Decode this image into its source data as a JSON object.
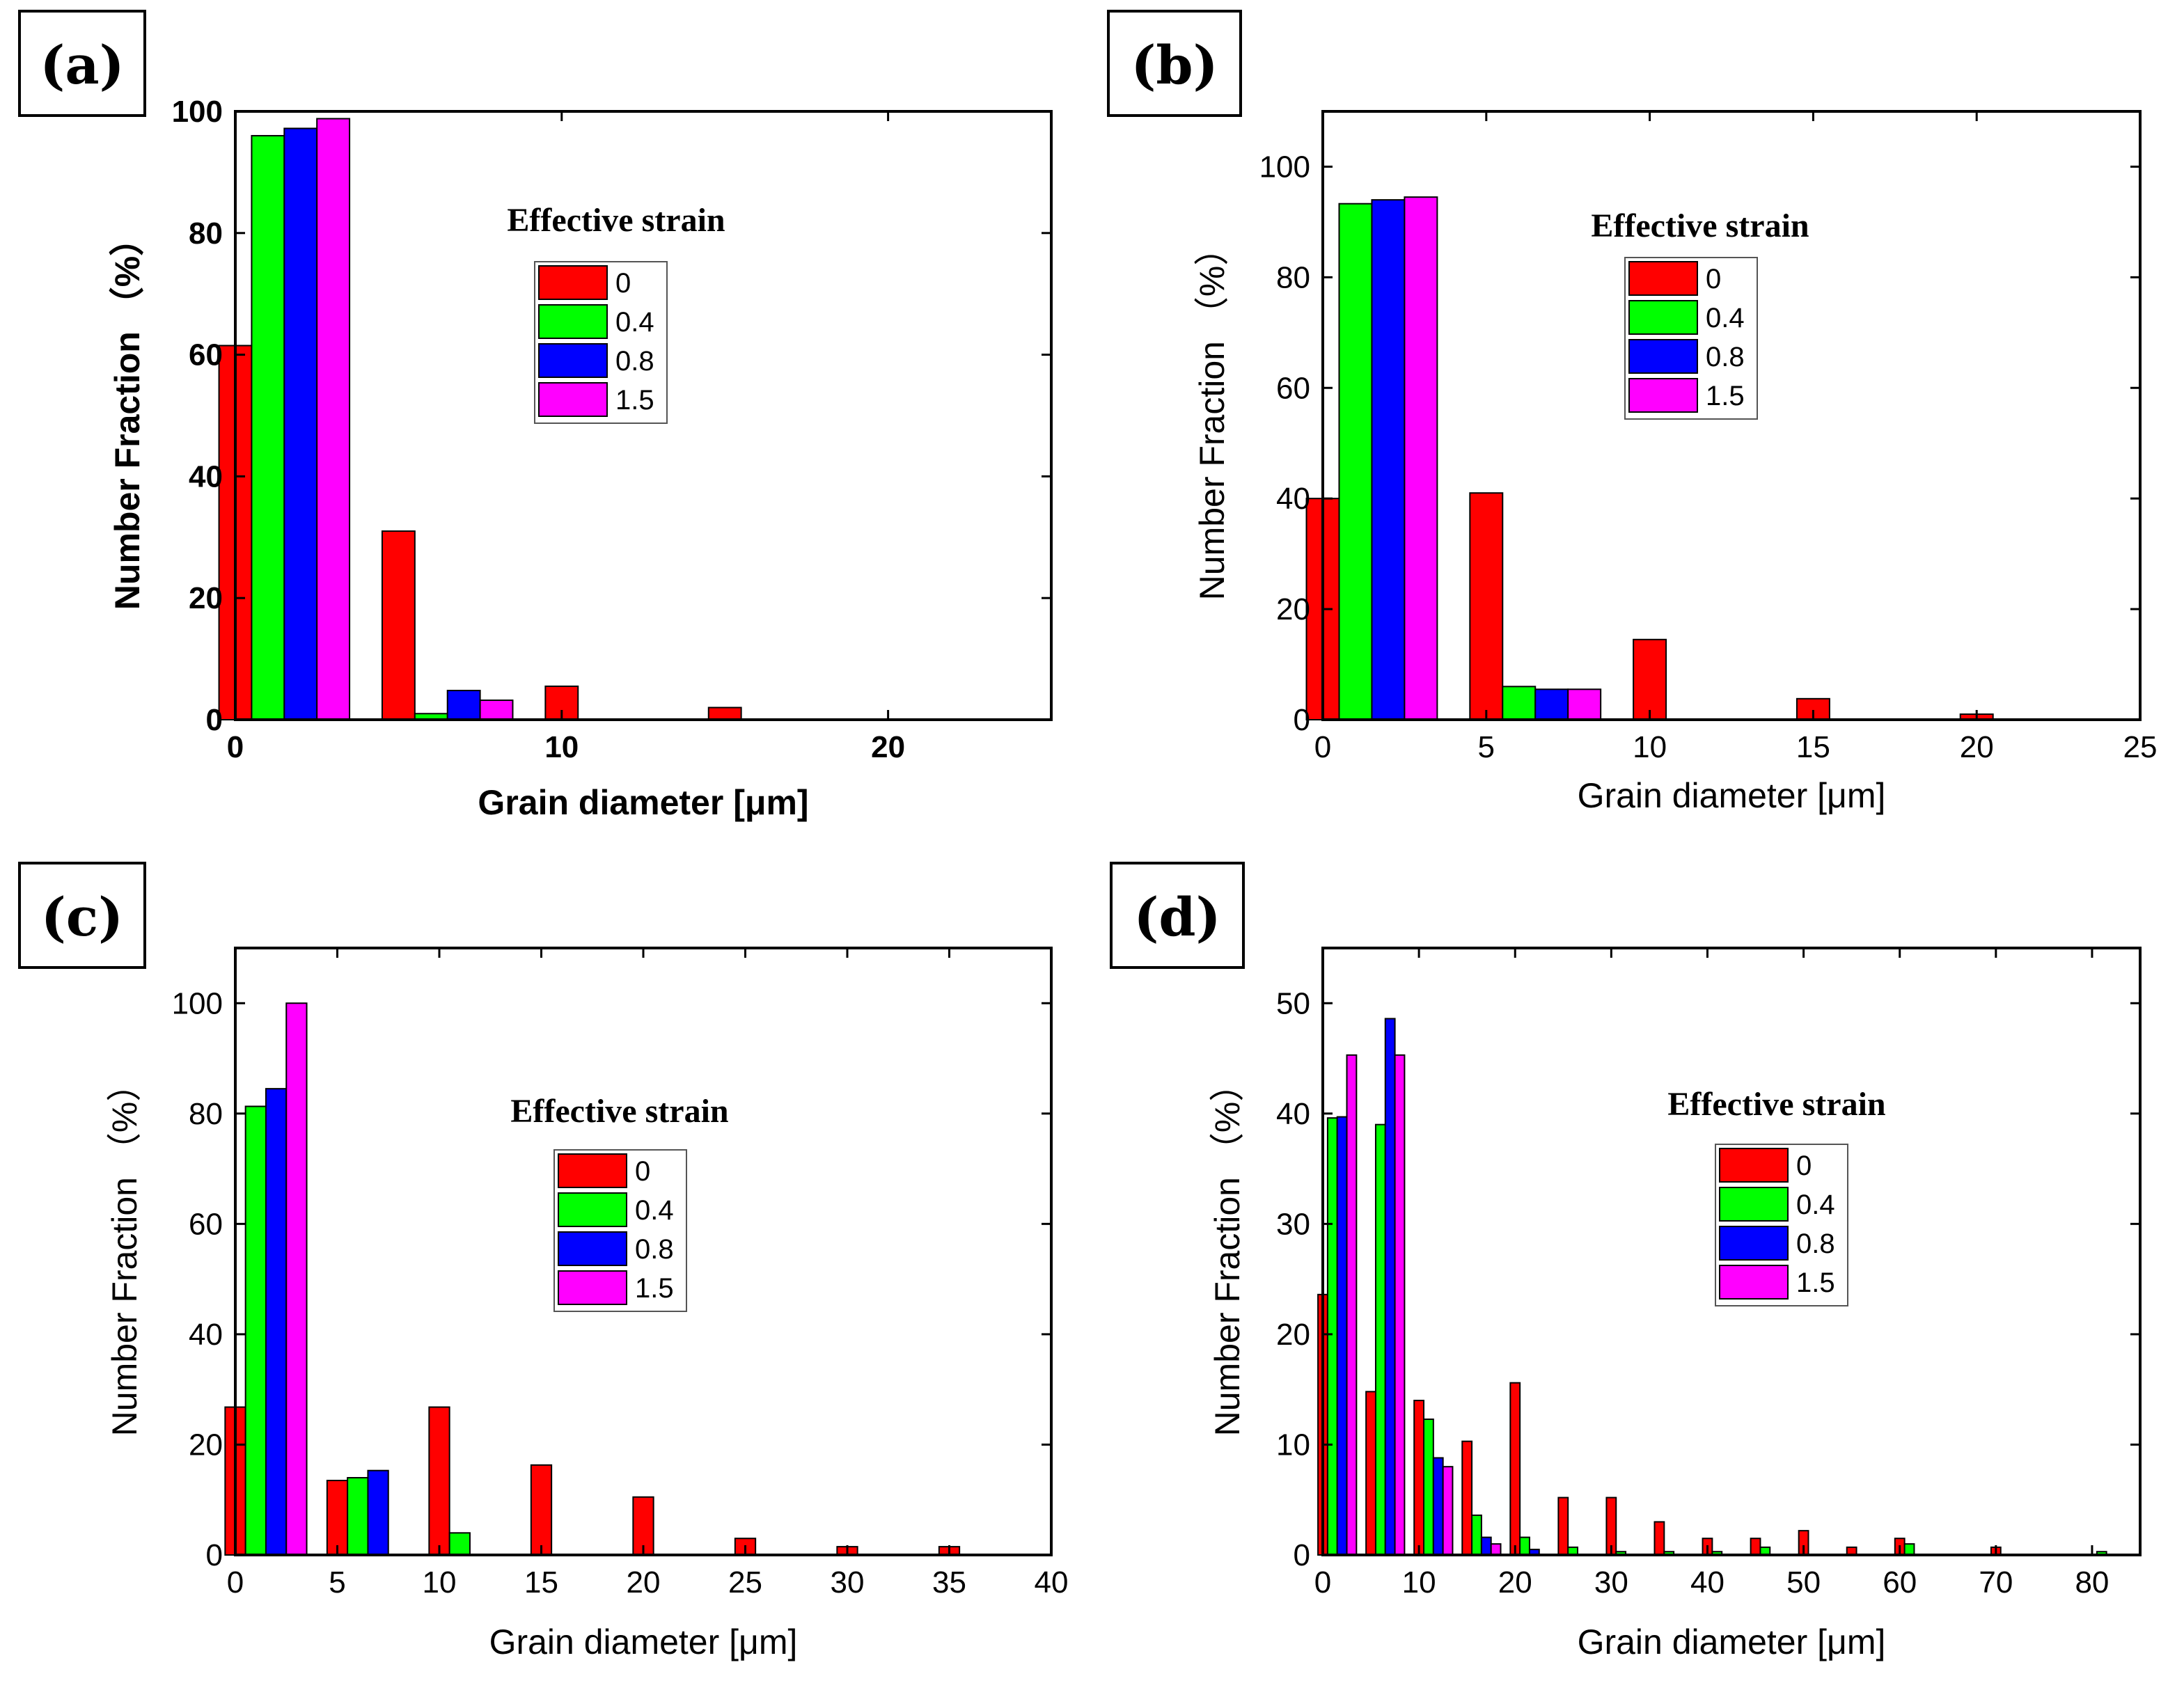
{
  "legend_title": "Effective strain",
  "legend_entries": [
    "0",
    "0.4",
    "0.8",
    "1.5"
  ],
  "series_colors": {
    "0": "#ff0000",
    "0.4": "#00ff00",
    "0.8": "#0000ff",
    "1.5": "#ff00ff"
  },
  "chart_data": [
    {
      "panel": "(a)",
      "type": "bar",
      "xlabel": "Grain diameter [μm]",
      "ylabel": "Number Fraction  （%）",
      "xlim": [
        0,
        25
      ],
      "ylim": [
        0,
        100
      ],
      "xticks": [
        0,
        10,
        20
      ],
      "yticks": [
        0,
        20,
        40,
        60,
        80,
        100
      ],
      "legend_title": "Effective strain",
      "series": [
        {
          "name": "0",
          "color": "#ff0000",
          "x": [
            1,
            6,
            11,
            16
          ],
          "values": [
            61.5,
            31,
            5.5,
            2
          ]
        },
        {
          "name": "0.4",
          "color": "#00ff00",
          "x": [
            2,
            7
          ],
          "values": [
            96,
            1
          ]
        },
        {
          "name": "0.8",
          "color": "#0000ff",
          "x": [
            3,
            8
          ],
          "values": [
            97.2,
            4.8
          ]
        },
        {
          "name": "1.5",
          "color": "#ff00ff",
          "x": [
            4,
            9
          ],
          "values": [
            98.8,
            3.2
          ]
        }
      ]
    },
    {
      "panel": "(b)",
      "type": "bar",
      "xlabel": "Grain diameter [μm]",
      "ylabel": "Number  Fraction  （%）",
      "xlim": [
        0,
        25
      ],
      "ylim": [
        0,
        110
      ],
      "xticks": [
        0,
        5,
        10,
        15,
        20,
        25
      ],
      "yticks": [
        0,
        20,
        40,
        60,
        80,
        100
      ],
      "legend_title": "Effective strain",
      "series": [
        {
          "name": "0",
          "color": "#ff0000",
          "x": [
            1,
            6,
            11,
            16,
            21
          ],
          "values": [
            40,
            41,
            14.5,
            3.8,
            1
          ]
        },
        {
          "name": "0.4",
          "color": "#00ff00",
          "x": [
            2,
            7
          ],
          "values": [
            93.3,
            6
          ]
        },
        {
          "name": "0.8",
          "color": "#0000ff",
          "x": [
            3,
            8
          ],
          "values": [
            94,
            5.5
          ]
        },
        {
          "name": "1.5",
          "color": "#ff00ff",
          "x": [
            4,
            9
          ],
          "values": [
            94.5,
            5.5
          ]
        }
      ]
    },
    {
      "panel": "(c)",
      "type": "bar",
      "xlabel": "Grain diameter [μm]",
      "ylabel": "Number Fraction  （%）",
      "xlim": [
        0,
        40
      ],
      "ylim": [
        0,
        110
      ],
      "xticks": [
        0,
        5,
        10,
        15,
        20,
        25,
        30,
        35,
        40
      ],
      "yticks": [
        0,
        20,
        40,
        60,
        80,
        100
      ],
      "legend_title": "Effective strain",
      "series": [
        {
          "name": "0",
          "color": "#ff0000",
          "x": [
            1,
            6,
            11,
            16,
            21,
            26,
            31,
            36
          ],
          "values": [
            26.8,
            13.5,
            26.8,
            16.3,
            10.5,
            3,
            1.5,
            1.5
          ]
        },
        {
          "name": "0.4",
          "color": "#00ff00",
          "x": [
            2,
            7,
            12
          ],
          "values": [
            81.3,
            14,
            4
          ]
        },
        {
          "name": "0.8",
          "color": "#0000ff",
          "x": [
            3,
            8
          ],
          "values": [
            84.5,
            15.3
          ]
        },
        {
          "name": "1.5",
          "color": "#ff00ff",
          "x": [
            4
          ],
          "values": [
            100
          ]
        }
      ]
    },
    {
      "panel": "(d)",
      "type": "bar",
      "xlabel": "Grain diameter [μm]",
      "ylabel": "Number Fraction  （%）",
      "xlim": [
        0,
        85
      ],
      "ylim": [
        0,
        55
      ],
      "xticks": [
        0,
        10,
        20,
        30,
        40,
        50,
        60,
        70,
        80
      ],
      "yticks": [
        0,
        10,
        20,
        30,
        40,
        50
      ],
      "legend_title": "Effective strain",
      "series": [
        {
          "name": "0",
          "color": "#ff0000",
          "x": [
            1,
            6,
            11,
            16,
            21,
            26,
            31,
            36,
            41,
            46,
            51,
            56,
            61,
            71
          ],
          "values": [
            23.6,
            14.8,
            14,
            10.3,
            15.6,
            5.2,
            5.2,
            3,
            1.5,
            1.5,
            2.2,
            0.7,
            1.5,
            0.7
          ]
        },
        {
          "name": "0.4",
          "color": "#00ff00",
          "x": [
            2,
            7,
            12,
            17,
            22,
            27,
            32,
            37,
            42,
            47,
            62,
            82
          ],
          "values": [
            39.6,
            39,
            12.3,
            3.6,
            1.6,
            0.7,
            0.3,
            0.3,
            0.3,
            0.7,
            1,
            0.3
          ]
        },
        {
          "name": "0.8",
          "color": "#0000ff",
          "x": [
            3,
            8,
            13,
            18,
            23
          ],
          "values": [
            39.7,
            48.6,
            8.8,
            1.6,
            0.5
          ]
        },
        {
          "name": "1.5",
          "color": "#ff00ff",
          "x": [
            4,
            9,
            14,
            19
          ],
          "values": [
            45.3,
            45.3,
            8,
            1
          ]
        }
      ]
    }
  ]
}
